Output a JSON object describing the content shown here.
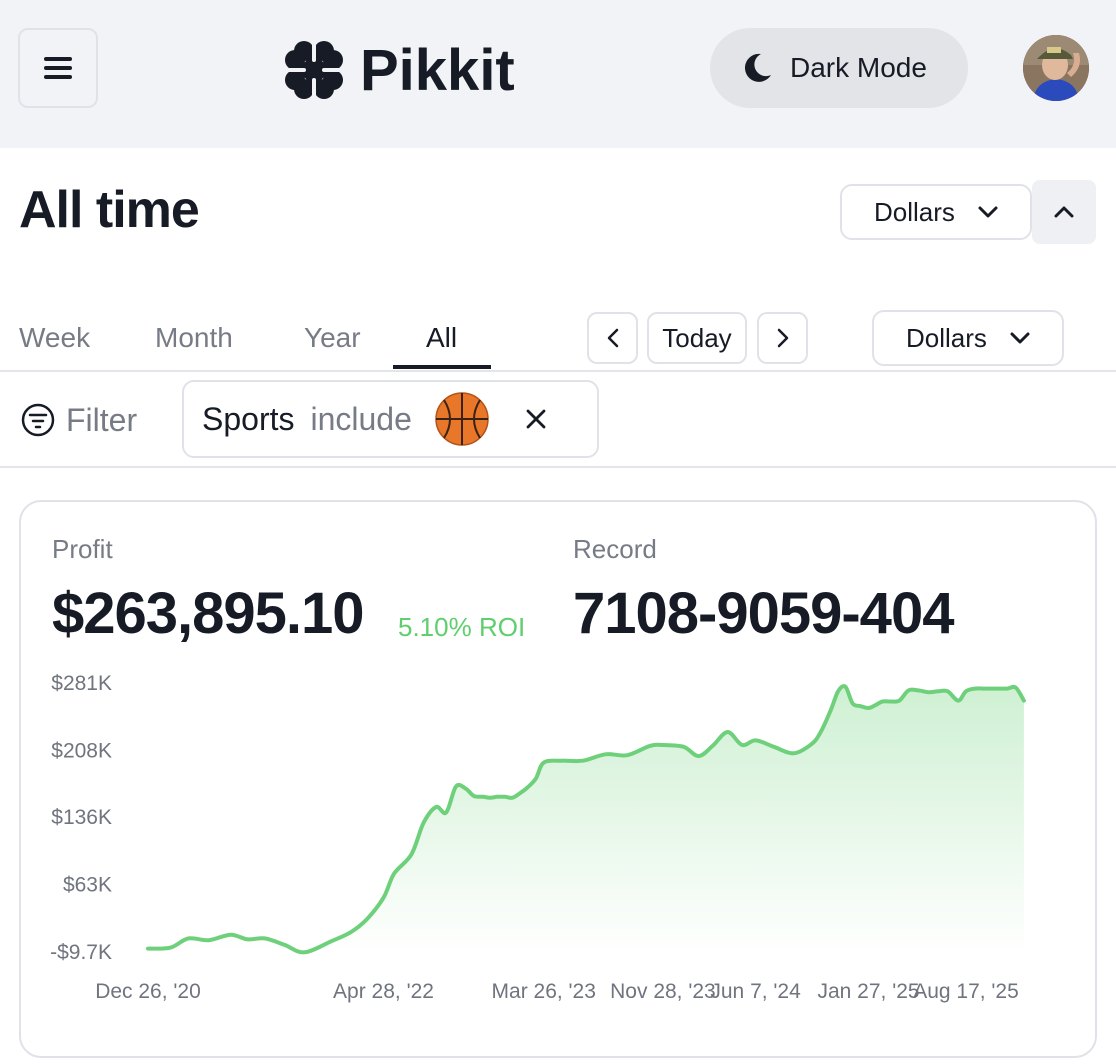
{
  "header": {
    "brand_name": "Pikkit",
    "dark_mode_label": "Dark Mode",
    "menu_icon": "hamburger-menu-icon",
    "moon_icon": "moon-icon"
  },
  "title_row": {
    "title": "All time",
    "currency_dropdown": "Dollars"
  },
  "tabs": [
    {
      "label": "Week",
      "active": false
    },
    {
      "label": "Month",
      "active": false
    },
    {
      "label": "Year",
      "active": false
    },
    {
      "label": "All",
      "active": true
    }
  ],
  "date_nav": {
    "today_label": "Today"
  },
  "currency_dropdown_2": "Dollars",
  "filter": {
    "label": "Filter",
    "chip_field": "Sports",
    "chip_operator": "include",
    "chip_value_icon": "basketball-icon"
  },
  "stats": {
    "profit_label": "Profit",
    "profit_value": "$263,895.10",
    "roi": "5.10% ROI",
    "record_label": "Record",
    "record_value": "7108-9059-404"
  },
  "colors": {
    "accent_green": "#6fd07c",
    "text_dark": "#161b26",
    "muted": "#767b85"
  },
  "chart_data": {
    "type": "area",
    "y_tick_labels": [
      "$281K",
      "$208K",
      "$136K",
      "$63K",
      "-$9.7K"
    ],
    "y_ticks": [
      281000,
      208000,
      136000,
      63000,
      -9700
    ],
    "ylim": [
      -9700,
      281000
    ],
    "x_tick_labels": [
      "Dec 26, '20",
      "Apr 28, '22",
      "Mar 26, '23",
      "Nov 28, '23",
      "Jun 7, '24",
      "Jan 27, '25",
      "Aug 17, '25"
    ],
    "x_ticks": [
      "2020-12-26",
      "2022-04-28",
      "2023-03-26",
      "2023-11-28",
      "2024-06-07",
      "2025-01-27",
      "2025-08-17"
    ],
    "grid": false,
    "series": [
      {
        "x": [
          "2020-12-26",
          "2021-02-10",
          "2021-03-20",
          "2021-05-01",
          "2021-06-15",
          "2021-07-20",
          "2021-08-25",
          "2021-10-05",
          "2021-11-15",
          "2022-01-10",
          "2022-02-20",
          "2022-03-25",
          "2022-04-28",
          "2022-05-20",
          "2022-06-25",
          "2022-07-20",
          "2022-08-15",
          "2022-09-05",
          "2022-09-25",
          "2022-10-15",
          "2022-11-01",
          "2022-11-20",
          "2022-12-05",
          "2022-12-20",
          "2023-01-05",
          "2023-01-20",
          "2023-02-05",
          "2023-02-20",
          "2023-03-10",
          "2023-03-26",
          "2023-05-01",
          "2023-06-15",
          "2023-08-01",
          "2023-09-15",
          "2023-11-01",
          "2023-11-28",
          "2024-01-10",
          "2024-02-10",
          "2024-03-10",
          "2024-04-10",
          "2024-05-10",
          "2024-06-07",
          "2024-07-15",
          "2024-08-25",
          "2024-10-01",
          "2024-10-20",
          "2024-11-10",
          "2024-11-25",
          "2024-12-10",
          "2024-12-25",
          "2025-01-10",
          "2025-01-27",
          "2025-02-10",
          "2025-02-25",
          "2025-03-15",
          "2025-04-01",
          "2025-04-20",
          "2025-05-10",
          "2025-06-01",
          "2025-06-20",
          "2025-07-10",
          "2025-08-01",
          "2025-08-17",
          "2025-09-05",
          "2025-09-25",
          "2025-10-15",
          "2025-11-10",
          "2025-11-28",
          "2025-12-15"
        ],
        "y": [
          -6000,
          -5000,
          5000,
          3000,
          9000,
          4000,
          5000,
          -2000,
          -10000,
          2000,
          12000,
          26000,
          49000,
          75000,
          96000,
          130000,
          147000,
          141000,
          169000,
          167000,
          159000,
          158000,
          157000,
          158000,
          158000,
          157000,
          162000,
          168000,
          178000,
          195000,
          197000,
          197000,
          204000,
          203000,
          213000,
          214000,
          212000,
          202000,
          213000,
          228000,
          214000,
          219000,
          212000,
          205000,
          215000,
          228000,
          252000,
          272000,
          277000,
          259000,
          256000,
          254000,
          257000,
          261000,
          261000,
          262000,
          273000,
          273000,
          271000,
          272000,
          272000,
          262000,
          272000,
          275000,
          275000,
          275000,
          275000,
          276000,
          262000
        ]
      }
    ]
  }
}
